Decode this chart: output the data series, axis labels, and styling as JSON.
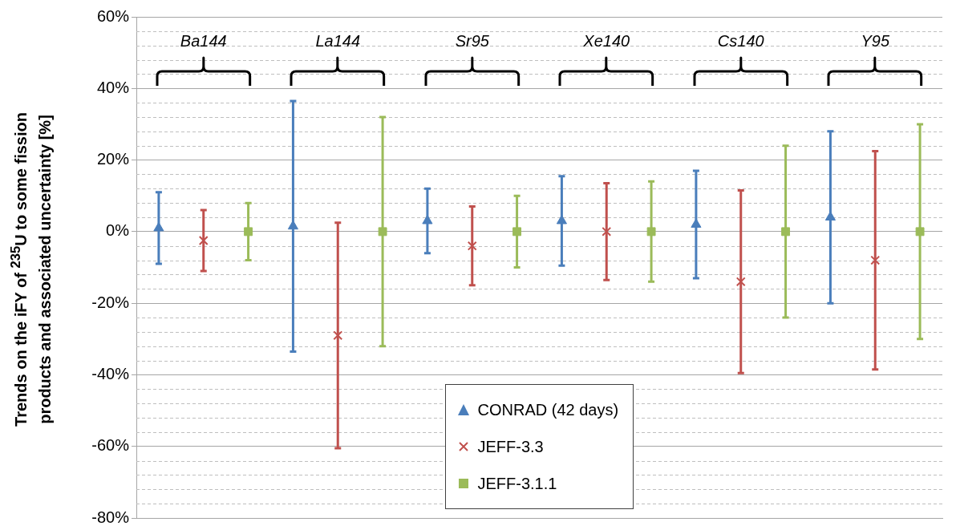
{
  "chart_data": {
    "type": "scatter",
    "ylabel": "Trends on the iFY of $^{235}$U to some fission products and associated uncertainty  [%]",
    "categories": [
      null,
      null,
      null,
      null,
      null,
      null,
      null,
      null,
      null,
      null,
      null,
      null,
      null,
      null,
      null,
      null,
      null,
      null
    ],
    "ylim": [
      -80,
      60
    ],
    "yticks": [
      {
        "value": -80,
        "label": "-80%"
      },
      {
        "value": -76,
        "label": null
      },
      {
        "value": -72,
        "label": null
      },
      {
        "value": -68,
        "label": null
      },
      {
        "value": -64,
        "label": null
      },
      {
        "value": -60,
        "label": "-60%"
      },
      {
        "value": -56,
        "label": null
      },
      {
        "value": -52,
        "label": null
      },
      {
        "value": -48,
        "label": null
      },
      {
        "value": -44,
        "label": null
      },
      {
        "value": -40,
        "label": "-40%"
      },
      {
        "value": -36,
        "label": null
      },
      {
        "value": -32,
        "label": null
      },
      {
        "value": -28,
        "label": null
      },
      {
        "value": -24,
        "label": null
      },
      {
        "value": -20,
        "label": "-20%"
      },
      {
        "value": -16,
        "label": null
      },
      {
        "value": -12,
        "label": null
      },
      {
        "value": -8,
        "label": null
      },
      {
        "value": -4,
        "label": null
      },
      {
        "value": 0,
        "label": "0%"
      },
      {
        "value": 4,
        "label": null
      },
      {
        "value": 8,
        "label": null
      },
      {
        "value": 12,
        "label": null
      },
      {
        "value": 16,
        "label": null
      },
      {
        "value": 20,
        "label": "20%"
      },
      {
        "value": 24,
        "label": null
      },
      {
        "value": 28,
        "label": null
      },
      {
        "value": 32,
        "label": null
      },
      {
        "value": 36,
        "label": null
      },
      {
        "value": 40,
        "label": "40%"
      },
      {
        "value": 44,
        "label": null
      },
      {
        "value": 48,
        "label": null
      },
      {
        "value": 52,
        "label": null
      },
      {
        "value": 56,
        "label": null
      },
      {
        "value": 60,
        "label": "60%"
      }
    ],
    "tick_labels": "y",
    "grid": "y",
    "legend": "bottom",
    "annotations": [
      "Ba144",
      "La144",
      "Sr95",
      "Xe140",
      "Cs140",
      "Y95"
    ],
    "series": [
      {
        "name": "CONRAD (42 days)",
        "color": "#4a7ebb",
        "marker": "triangle",
        "values": [
          1,
          null,
          null,
          1.5,
          null,
          null,
          3,
          null,
          null,
          3,
          null,
          null,
          2,
          null,
          null,
          4,
          null,
          null
        ],
        "errors": [
          10,
          null,
          null,
          35,
          null,
          null,
          9,
          null,
          null,
          12.5,
          null,
          null,
          15,
          null,
          null,
          24,
          null,
          null
        ]
      },
      {
        "name": "JEFF-3.3",
        "color": "#c0504d",
        "marker": "cross",
        "values": [
          null,
          -2.5,
          null,
          null,
          -29,
          null,
          null,
          -4,
          null,
          null,
          0,
          null,
          null,
          -14,
          null,
          null,
          -8,
          null
        ],
        "errors": [
          null,
          8.5,
          null,
          null,
          31.5,
          null,
          null,
          11,
          null,
          null,
          13.5,
          null,
          null,
          25.5,
          null,
          null,
          30.5,
          null
        ]
      },
      {
        "name": "JEFF-3.1.1",
        "color": "#9bbb59",
        "marker": "square",
        "values": [
          null,
          null,
          0,
          null,
          null,
          0,
          null,
          null,
          0,
          null,
          null,
          0,
          null,
          null,
          0,
          null,
          null,
          0
        ],
        "errors": [
          null,
          null,
          8,
          null,
          null,
          32,
          null,
          null,
          10,
          null,
          null,
          14,
          null,
          null,
          24,
          null,
          null,
          30
        ]
      }
    ]
  }
}
